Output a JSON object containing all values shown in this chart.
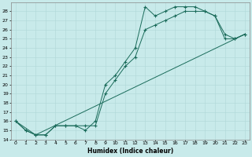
{
  "xlabel": "Humidex (Indice chaleur)",
  "background_color": "#c8eaea",
  "grid_color": "#b0d8d8",
  "line_color": "#1a6b5a",
  "xlim": [
    -0.5,
    23.5
  ],
  "ylim": [
    14,
    29
  ],
  "x_ticks": [
    0,
    1,
    2,
    3,
    4,
    5,
    6,
    7,
    8,
    9,
    10,
    11,
    12,
    13,
    14,
    15,
    16,
    17,
    18,
    19,
    20,
    21,
    22,
    23
  ],
  "y_ticks": [
    14,
    15,
    16,
    17,
    18,
    19,
    20,
    21,
    22,
    23,
    24,
    25,
    26,
    27,
    28
  ],
  "series1": [
    [
      0,
      16
    ],
    [
      1,
      15
    ],
    [
      2,
      14.5
    ],
    [
      3,
      14.5
    ],
    [
      4,
      15.5
    ],
    [
      5,
      15.5
    ],
    [
      6,
      15.5
    ],
    [
      7,
      15
    ],
    [
      8,
      16
    ],
    [
      9,
      20
    ],
    [
      10,
      21
    ],
    [
      11,
      22.5
    ],
    [
      12,
      24
    ],
    [
      13,
      28.5
    ],
    [
      14,
      27.5
    ],
    [
      15,
      28
    ],
    [
      16,
      28.5
    ],
    [
      17,
      28.5
    ],
    [
      18,
      28.5
    ],
    [
      19,
      28
    ],
    [
      20,
      27.5
    ],
    [
      21,
      25
    ],
    [
      22,
      25
    ],
    [
      23,
      25.5
    ]
  ],
  "series2": [
    [
      0,
      16
    ],
    [
      1,
      15
    ],
    [
      2,
      14.5
    ],
    [
      3,
      14.5
    ],
    [
      4,
      15.5
    ],
    [
      5,
      15.5
    ],
    [
      6,
      15.5
    ],
    [
      7,
      15.5
    ],
    [
      8,
      15.5
    ],
    [
      9,
      19
    ],
    [
      10,
      20.5
    ],
    [
      11,
      22
    ],
    [
      12,
      23
    ],
    [
      13,
      26
    ],
    [
      14,
      26.5
    ],
    [
      15,
      27
    ],
    [
      16,
      27.5
    ],
    [
      17,
      28
    ],
    [
      18,
      28
    ],
    [
      19,
      28
    ],
    [
      20,
      27.5
    ],
    [
      21,
      25.5
    ],
    [
      22,
      25
    ],
    [
      23,
      25.5
    ]
  ],
  "series3": [
    [
      0,
      16
    ],
    [
      2,
      14.5
    ],
    [
      23,
      25.5
    ]
  ],
  "xlabel_fontsize": 5.5,
  "tick_fontsize": 4.5
}
